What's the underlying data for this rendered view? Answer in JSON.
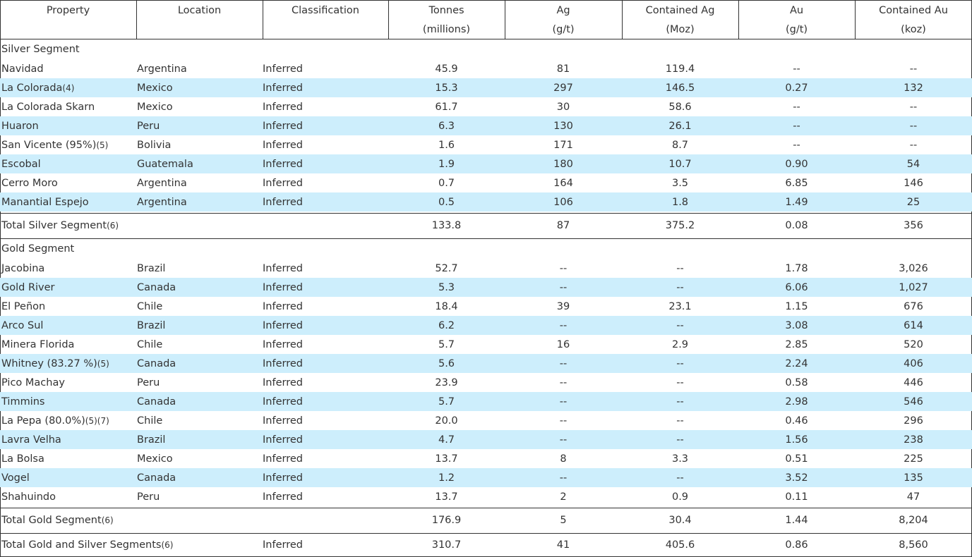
{
  "table": {
    "header": [
      [
        "Property"
      ],
      [
        "Location"
      ],
      [
        "Classification"
      ],
      [
        "Tonnes",
        "(millions)"
      ],
      [
        "Ag",
        "(g/t)"
      ],
      [
        "Contained Ag",
        "(Moz)"
      ],
      [
        "Au",
        "(g/t)"
      ],
      [
        "Contained Au",
        "(koz)"
      ]
    ],
    "sections": [
      {
        "title": "Silver Segment",
        "rows": [
          {
            "property": "Navidad",
            "location": "Argentina",
            "classification": "Inferred",
            "values": [
              "45.9",
              "81",
              "119.4",
              "--",
              "--"
            ]
          },
          {
            "property": "La Colorada",
            "note": "(4)",
            "location": "Mexico",
            "classification": "Inferred",
            "values": [
              "15.3",
              "297",
              "146.5",
              "0.27",
              "132"
            ]
          },
          {
            "property": "La Colorada Skarn",
            "location": "Mexico",
            "classification": "Inferred",
            "values": [
              "61.7",
              "30",
              "58.6",
              "--",
              "--"
            ]
          },
          {
            "property": "Huaron",
            "location": "Peru",
            "classification": "Inferred",
            "values": [
              "6.3",
              "130",
              "26.1",
              "--",
              "--"
            ]
          },
          {
            "property": "San Vicente (95%)",
            "note": "(5)",
            "location": "Bolivia",
            "classification": "Inferred",
            "values": [
              "1.6",
              "171",
              "8.7",
              "--",
              "--"
            ]
          },
          {
            "property": "Escobal",
            "location": "Guatemala",
            "classification": "Inferred",
            "values": [
              "1.9",
              "180",
              "10.7",
              "0.90",
              "54"
            ]
          },
          {
            "property": "Cerro Moro",
            "location": "Argentina",
            "classification": "Inferred",
            "values": [
              "0.7",
              "164",
              "3.5",
              "6.85",
              "146"
            ]
          },
          {
            "property": "Manantial Espejo",
            "location": "Argentina",
            "classification": "Inferred",
            "values": [
              "0.5",
              "106",
              "1.8",
              "1.49",
              "25"
            ]
          }
        ],
        "total": {
          "property": "Total Silver Segment",
          "note": "(6)",
          "values": [
            "133.8",
            "87",
            "375.2",
            "0.08",
            "356"
          ]
        }
      },
      {
        "title": "Gold Segment",
        "rows": [
          {
            "property": "Jacobina",
            "location": "Brazil",
            "classification": "Inferred",
            "values": [
              "52.7",
              "--",
              "--",
              "1.78",
              "3,026"
            ]
          },
          {
            "property": "Gold River",
            "location": "Canada",
            "classification": "Inferred",
            "values": [
              "5.3",
              "--",
              "--",
              "6.06",
              "1,027"
            ]
          },
          {
            "property": "El Peñon",
            "location": "Chile",
            "classification": "Inferred",
            "values": [
              "18.4",
              "39",
              "23.1",
              "1.15",
              "676"
            ]
          },
          {
            "property": "Arco Sul",
            "location": "Brazil",
            "classification": "Inferred",
            "values": [
              "6.2",
              "--",
              "--",
              "3.08",
              "614"
            ]
          },
          {
            "property": "Minera Florida",
            "location": "Chile",
            "classification": "Inferred",
            "values": [
              "5.7",
              "16",
              "2.9",
              "2.85",
              "520"
            ]
          },
          {
            "property": "Whitney (83.27 %)",
            "note": "(5)",
            "location": "Canada",
            "classification": "Inferred",
            "values": [
              "5.6",
              "--",
              "--",
              "2.24",
              "406"
            ]
          },
          {
            "property": "Pico Machay",
            "location": "Peru",
            "classification": "Inferred",
            "values": [
              "23.9",
              "--",
              "--",
              "0.58",
              "446"
            ]
          },
          {
            "property": "Timmins",
            "location": "Canada",
            "classification": "Inferred",
            "values": [
              "5.7",
              "--",
              "--",
              "2.98",
              "546"
            ]
          },
          {
            "property": "La Pepa (80.0%)",
            "note": "(5)(7)",
            "location": "Chile",
            "classification": "Inferred",
            "values": [
              "20.0",
              "--",
              "--",
              "0.46",
              "296"
            ]
          },
          {
            "property": "Lavra Velha",
            "location": "Brazil",
            "classification": "Inferred",
            "values": [
              "4.7",
              "--",
              "--",
              "1.56",
              "238"
            ]
          },
          {
            "property": "La Bolsa",
            "location": "Mexico",
            "classification": "Inferred",
            "values": [
              "13.7",
              "8",
              "3.3",
              "0.51",
              "225"
            ]
          },
          {
            "property": "Vogel",
            "location": "Canada",
            "classification": "Inferred",
            "values": [
              "1.2",
              "--",
              "--",
              "3.52",
              "135"
            ]
          },
          {
            "property": "Shahuindo",
            "location": "Peru",
            "classification": "Inferred",
            "values": [
              "13.7",
              "2",
              "0.9",
              "0.11",
              "47"
            ]
          }
        ],
        "total": {
          "property": "Total Gold Segment",
          "note": "(6)",
          "values": [
            "176.9",
            "5",
            "30.4",
            "1.44",
            "8,204"
          ]
        }
      }
    ],
    "grand_total": {
      "property": "Total Gold and Silver Segments",
      "note": "(6)",
      "classification": "Inferred",
      "values": [
        "310.7",
        "41",
        "405.6",
        "0.86",
        "8,560"
      ]
    }
  }
}
